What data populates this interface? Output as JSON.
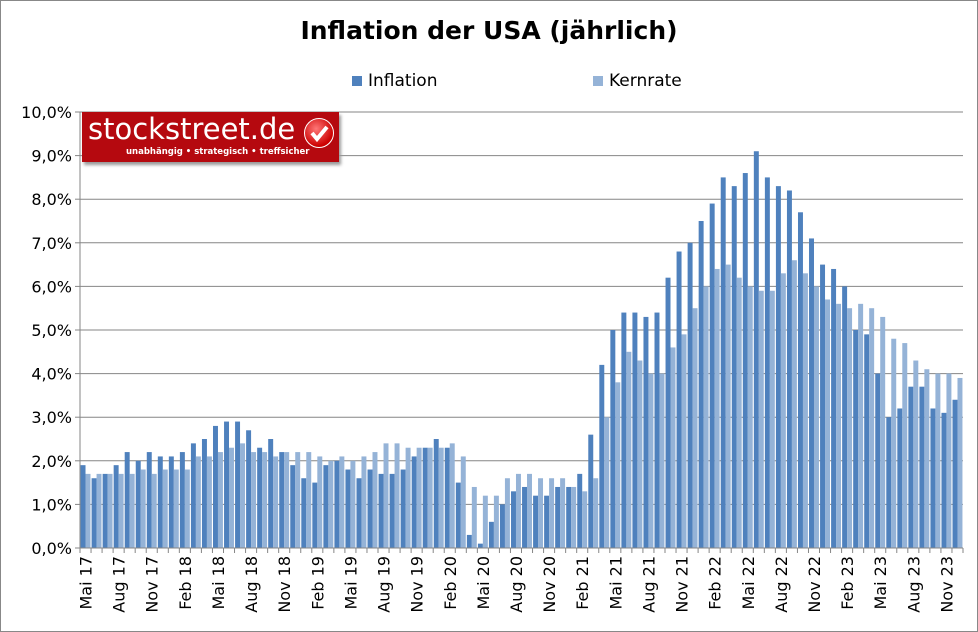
{
  "chart_data": {
    "type": "bar",
    "title": "Inflation der USA (jährlich)",
    "xlabel": "",
    "ylabel": "",
    "ylim": [
      0,
      10
    ],
    "yticks": [
      "0,0%",
      "1,0%",
      "2,0%",
      "3,0%",
      "4,0%",
      "5,0%",
      "6,0%",
      "7,0%",
      "8,0%",
      "9,0%",
      "10,0%"
    ],
    "grid": true,
    "legend_placement": "top",
    "categories": [
      "Mai 17",
      "Jun 17",
      "Jul 17",
      "Aug 17",
      "Sep 17",
      "Okt 17",
      "Nov 17",
      "Dez 17",
      "Jan 18",
      "Feb 18",
      "Mär 18",
      "Apr 18",
      "Mai 18",
      "Jun 18",
      "Jul 18",
      "Aug 18",
      "Sep 18",
      "Okt 18",
      "Nov 18",
      "Dez 18",
      "Jan 19",
      "Feb 19",
      "Mär 19",
      "Apr 19",
      "Mai 19",
      "Jun 19",
      "Jul 19",
      "Aug 19",
      "Sep 19",
      "Okt 19",
      "Nov 19",
      "Dez 19",
      "Jan 20",
      "Feb 20",
      "Mär 20",
      "Apr 20",
      "Mai 20",
      "Jun 20",
      "Jul 20",
      "Aug 20",
      "Sep 20",
      "Okt 20",
      "Nov 20",
      "Dez 20",
      "Jan 21",
      "Feb 21",
      "Mär 21",
      "Apr 21",
      "Mai 21",
      "Jun 21",
      "Jul 21",
      "Aug 21",
      "Sep 21",
      "Okt 21",
      "Nov 21",
      "Dez 21",
      "Jan 22",
      "Feb 22",
      "Mär 22",
      "Apr 22",
      "Mai 22",
      "Jun 22",
      "Jul 22",
      "Aug 22",
      "Sep 22",
      "Okt 22",
      "Nov 22",
      "Dez 22",
      "Jan 23",
      "Feb 23",
      "Mär 23",
      "Apr 23",
      "Mai 23",
      "Jun 23",
      "Jul 23",
      "Aug 23",
      "Sep 23",
      "Okt 23",
      "Nov 23",
      "Dez 23"
    ],
    "tick_labels": [
      "Mai 17",
      "Aug 17",
      "Nov 17",
      "Feb 18",
      "Mai 18",
      "Aug 18",
      "Nov 18",
      "Feb 19",
      "Mai 19",
      "Aug 19",
      "Nov 19",
      "Feb 20",
      "Mai 20",
      "Aug 20",
      "Nov 20",
      "Feb 21",
      "Mai 21",
      "Aug 21",
      "Nov 21",
      "Feb 22",
      "Mai 22",
      "Aug 22",
      "Nov 22",
      "Feb 23",
      "Mai 23",
      "Aug 23",
      "Nov 23"
    ],
    "series": [
      {
        "name": "Inflation",
        "color": "#4f81bd",
        "values": [
          1.9,
          1.6,
          1.7,
          1.9,
          2.2,
          2.0,
          2.2,
          2.1,
          2.1,
          2.2,
          2.4,
          2.5,
          2.8,
          2.9,
          2.9,
          2.7,
          2.3,
          2.5,
          2.2,
          1.9,
          1.6,
          1.5,
          1.9,
          2.0,
          1.8,
          1.6,
          1.8,
          1.7,
          1.7,
          1.8,
          2.1,
          2.3,
          2.5,
          2.3,
          1.5,
          0.3,
          0.1,
          0.6,
          1.0,
          1.3,
          1.4,
          1.2,
          1.2,
          1.4,
          1.4,
          1.7,
          2.6,
          4.2,
          5.0,
          5.4,
          5.4,
          5.3,
          5.4,
          6.2,
          6.8,
          7.0,
          7.5,
          7.9,
          8.5,
          8.3,
          8.6,
          9.1,
          8.5,
          8.3,
          8.2,
          7.7,
          7.1,
          6.5,
          6.4,
          6.0,
          5.0,
          4.9,
          4.0,
          3.0,
          3.2,
          3.7,
          3.7,
          3.2,
          3.1,
          3.4
        ]
      },
      {
        "name": "Kernrate",
        "color": "#95b3d7",
        "values": [
          1.7,
          1.7,
          1.7,
          1.7,
          1.7,
          1.8,
          1.7,
          1.8,
          1.8,
          1.8,
          2.1,
          2.1,
          2.2,
          2.3,
          2.4,
          2.2,
          2.2,
          2.1,
          2.2,
          2.2,
          2.2,
          2.1,
          2.0,
          2.1,
          2.0,
          2.1,
          2.2,
          2.4,
          2.4,
          2.3,
          2.3,
          2.3,
          2.3,
          2.4,
          2.1,
          1.4,
          1.2,
          1.2,
          1.6,
          1.7,
          1.7,
          1.6,
          1.6,
          1.6,
          1.4,
          1.3,
          1.6,
          3.0,
          3.8,
          4.5,
          4.3,
          4.0,
          4.0,
          4.6,
          4.9,
          5.5,
          6.0,
          6.4,
          6.5,
          6.2,
          6.0,
          5.9,
          5.9,
          6.3,
          6.6,
          6.3,
          6.0,
          5.7,
          5.6,
          5.5,
          5.6,
          5.5,
          5.3,
          4.8,
          4.7,
          4.3,
          4.1,
          4.0,
          4.0,
          3.9
        ]
      }
    ]
  },
  "logo": {
    "name": "stockstreet.de",
    "tagline": "unabhängig • strategisch • treffsicher"
  }
}
